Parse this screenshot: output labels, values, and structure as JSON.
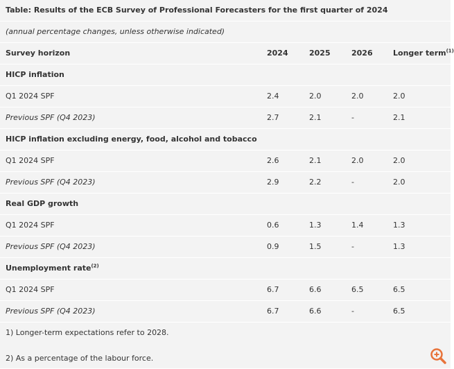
{
  "title": "Table: Results of the ECB Survey of Professional Forecasters for the first quarter of 2024",
  "subtitle": "(annual percentage changes, unless otherwise indicated)",
  "header": {
    "label": "Survey horizon",
    "columns": [
      "2024",
      "2025",
      "2026",
      "Longer term"
    ],
    "column_notes": [
      null,
      null,
      null,
      "(1)"
    ]
  },
  "sections": [
    {
      "title": "HICP inflation",
      "note": null,
      "rows": [
        {
          "label": "Q1 2024 SPF",
          "values": [
            "2.4",
            "2.0",
            "2.0",
            "2.0"
          ]
        },
        {
          "label": "Previous SPF (Q4 2023)",
          "values": [
            "2.7",
            "2.1",
            "-",
            "2.1"
          ]
        }
      ]
    },
    {
      "title": "HICP inflation excluding energy, food, alcohol and tobacco",
      "note": null,
      "rows": [
        {
          "label": "Q1 2024 SPF",
          "values": [
            "2.6",
            "2.1",
            "2.0",
            "2.0"
          ]
        },
        {
          "label": "Previous SPF (Q4 2023)",
          "values": [
            "2.9",
            "2.2",
            "-",
            "2.0"
          ]
        }
      ]
    },
    {
      "title": "Real GDP growth",
      "note": null,
      "rows": [
        {
          "label": "Q1 2024 SPF",
          "values": [
            "0.6",
            "1.3",
            "1.4",
            "1.3"
          ]
        },
        {
          "label": "Previous SPF (Q4 2023)",
          "values": [
            "0.9",
            "1.5",
            "-",
            "1.3"
          ]
        }
      ]
    },
    {
      "title": "Unemployment rate",
      "note": "(2)",
      "rows": [
        {
          "label": "Q1 2024 SPF",
          "values": [
            "6.7",
            "6.6",
            "6.5",
            "6.5"
          ]
        },
        {
          "label": "Previous SPF (Q4 2023)",
          "values": [
            "6.7",
            "6.6",
            "-",
            "6.5"
          ]
        }
      ]
    }
  ],
  "footnotes": [
    "1) Longer-term expectations refer to 2028.",
    "2) As a percentage of the labour force."
  ]
}
